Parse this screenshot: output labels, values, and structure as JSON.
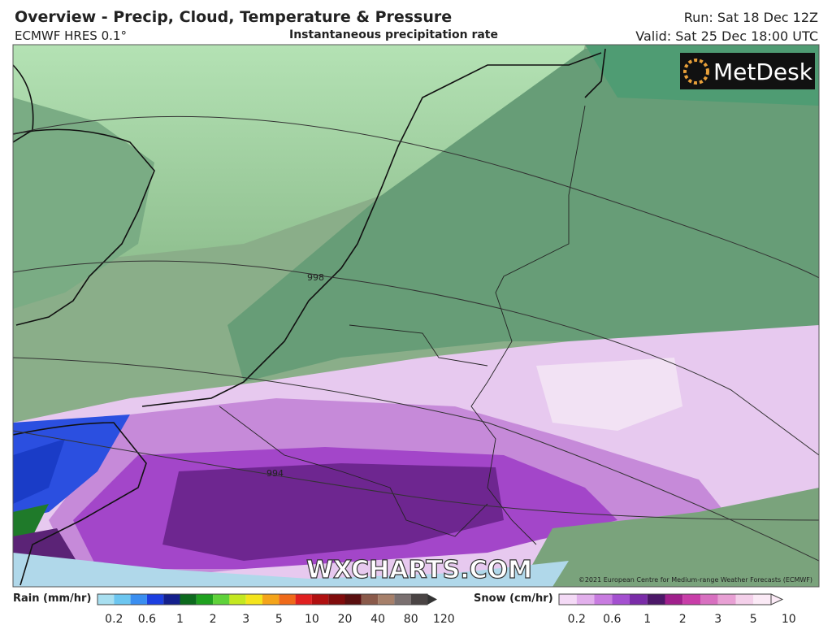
{
  "header": {
    "title": "Overview - Precip, Cloud, Temperature & Pressure",
    "model": "ECMWF HRES 0.1°",
    "field": "Instantaneous precipitation rate",
    "run": "Run: Sat 18 Dec 12Z",
    "valid": "Valid: Sat 25 Dec 18:00 UTC"
  },
  "map": {
    "isobar_labels": [
      "998",
      "994"
    ],
    "logo": "MetDesk",
    "watermark": "WXCHARTS.COM",
    "copyright": "©2021 European Centre for Medium-range Weather Forecasts (ECMWF)"
  },
  "legend": {
    "rain": {
      "title": "Rain (mm/hr)",
      "ticks": [
        0.2,
        0.6,
        1,
        2,
        3,
        5,
        10,
        20,
        40,
        80,
        120
      ]
    },
    "snow": {
      "title": "Snow (cm/hr)",
      "ticks": [
        0.2,
        0.6,
        1,
        2,
        3,
        5,
        10
      ]
    }
  }
}
